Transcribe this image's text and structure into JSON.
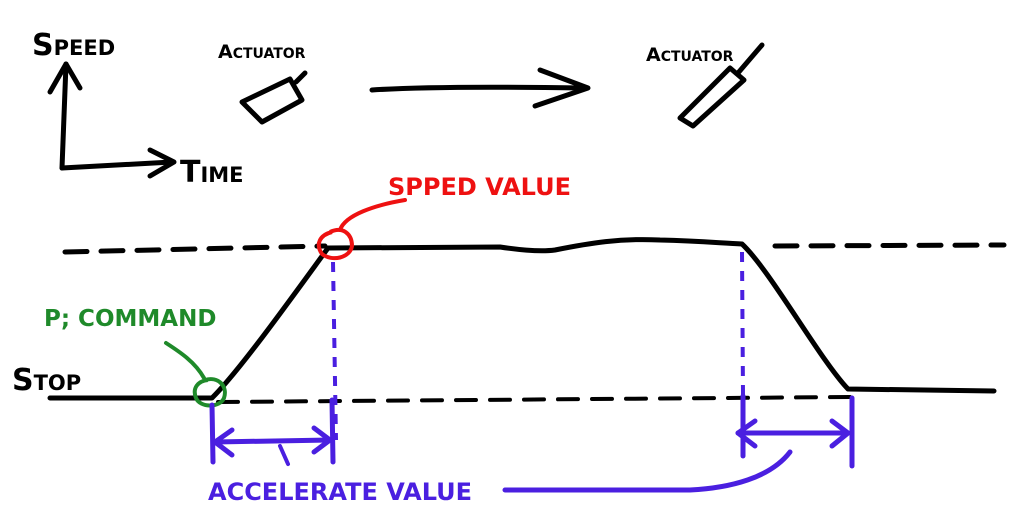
{
  "axes": {
    "y_label_first": "S",
    "y_label_rest": "PEED",
    "x_label_first": "T",
    "x_label_rest": "IME"
  },
  "actuators": [
    {
      "label_first": "A",
      "label_rest": "CTUATOR",
      "state": "start"
    },
    {
      "label_first": "A",
      "label_rest": "CTUATOR",
      "state": "end"
    }
  ],
  "profile": {
    "stop_first": "S",
    "stop_rest": "TOP",
    "speed_value": "SPPED VALUE",
    "command": "P; COMMAND",
    "accelerate_value": "ACCELERATE VALUE"
  },
  "colors": {
    "ink": "#000000",
    "speed_value": "#ee1111",
    "command": "#1f8a2a",
    "accelerate": "#4a1fe0"
  }
}
